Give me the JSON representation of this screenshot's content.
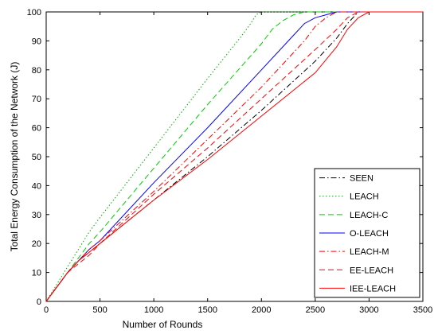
{
  "chart_data": {
    "type": "line",
    "xlabel": "Number of Rounds",
    "ylabel": "Total Energy Consumption of the Network (J)",
    "xlim": [
      0,
      3500
    ],
    "ylim": [
      0,
      100
    ],
    "xticks": [
      0,
      500,
      1000,
      1500,
      2000,
      2500,
      3000,
      3500
    ],
    "yticks": [
      0,
      10,
      20,
      30,
      40,
      50,
      60,
      70,
      80,
      90,
      100
    ],
    "grid": false,
    "legend_position": "bottom-right",
    "series": [
      {
        "name": "SEEN",
        "color": "#000000",
        "dash": "dashdot",
        "x": [
          0,
          100,
          200,
          300,
          400,
          500,
          1000,
          1500,
          2000,
          2500,
          2700,
          2800,
          2900,
          3500
        ],
        "y": [
          0,
          5,
          10,
          14,
          17,
          20,
          35,
          50,
          66,
          83,
          91,
          96,
          100,
          100
        ]
      },
      {
        "name": "LEACH",
        "color": "#00aa00",
        "dash": "dotted",
        "x": [
          0,
          100,
          200,
          300,
          400,
          500,
          1000,
          1500,
          1800,
          1900,
          1950,
          2000,
          3500
        ],
        "y": [
          0,
          6,
          12,
          18,
          24,
          29,
          53,
          77,
          91,
          96,
          99,
          100,
          100
        ]
      },
      {
        "name": "LEACH-C",
        "color": "#00cc00",
        "dash": "dashed",
        "x": [
          0,
          100,
          200,
          300,
          400,
          500,
          1000,
          1500,
          2000,
          2100,
          2200,
          2300,
          2400,
          3500
        ],
        "y": [
          0,
          5,
          10,
          15,
          20,
          24,
          46,
          68,
          89,
          94,
          97,
          99,
          100,
          100
        ]
      },
      {
        "name": "O-LEACH",
        "color": "#0000ff",
        "dash": "solid",
        "x": [
          0,
          100,
          200,
          300,
          400,
          500,
          1000,
          1500,
          2000,
          2300,
          2400,
          2500,
          2600,
          2700,
          3500
        ],
        "y": [
          0,
          5,
          10,
          14,
          18,
          21,
          41,
          60,
          80,
          92,
          96,
          98,
          99,
          100,
          100
        ]
      },
      {
        "name": "LEACH-M",
        "color": "#ff0000",
        "dash": "dashdot",
        "x": [
          0,
          100,
          200,
          300,
          400,
          500,
          1000,
          1500,
          2000,
          2400,
          2500,
          2600,
          2700,
          3500
        ],
        "y": [
          0,
          5,
          10,
          14,
          18,
          21,
          38,
          56,
          74,
          90,
          95,
          98,
          100,
          100
        ]
      },
      {
        "name": "EE-LEACH",
        "color": "#ff0000",
        "dash": "dashed",
        "x": [
          0,
          100,
          200,
          300,
          400,
          500,
          1000,
          1500,
          2000,
          2500,
          2700,
          2800,
          2900,
          3500
        ],
        "y": [
          0,
          5,
          10,
          13,
          16,
          20,
          37,
          53,
          70,
          87,
          94,
          98,
          100,
          100
        ]
      },
      {
        "name": "IEE-LEACH",
        "color": "#ff0000",
        "dash": "solid",
        "x": [
          0,
          100,
          200,
          300,
          400,
          500,
          1000,
          1500,
          2000,
          2500,
          2700,
          2800,
          2900,
          3000,
          3500
        ],
        "y": [
          0,
          5,
          10,
          14,
          17,
          20,
          35,
          49,
          64,
          79,
          88,
          94,
          98,
          100,
          100
        ]
      }
    ]
  }
}
